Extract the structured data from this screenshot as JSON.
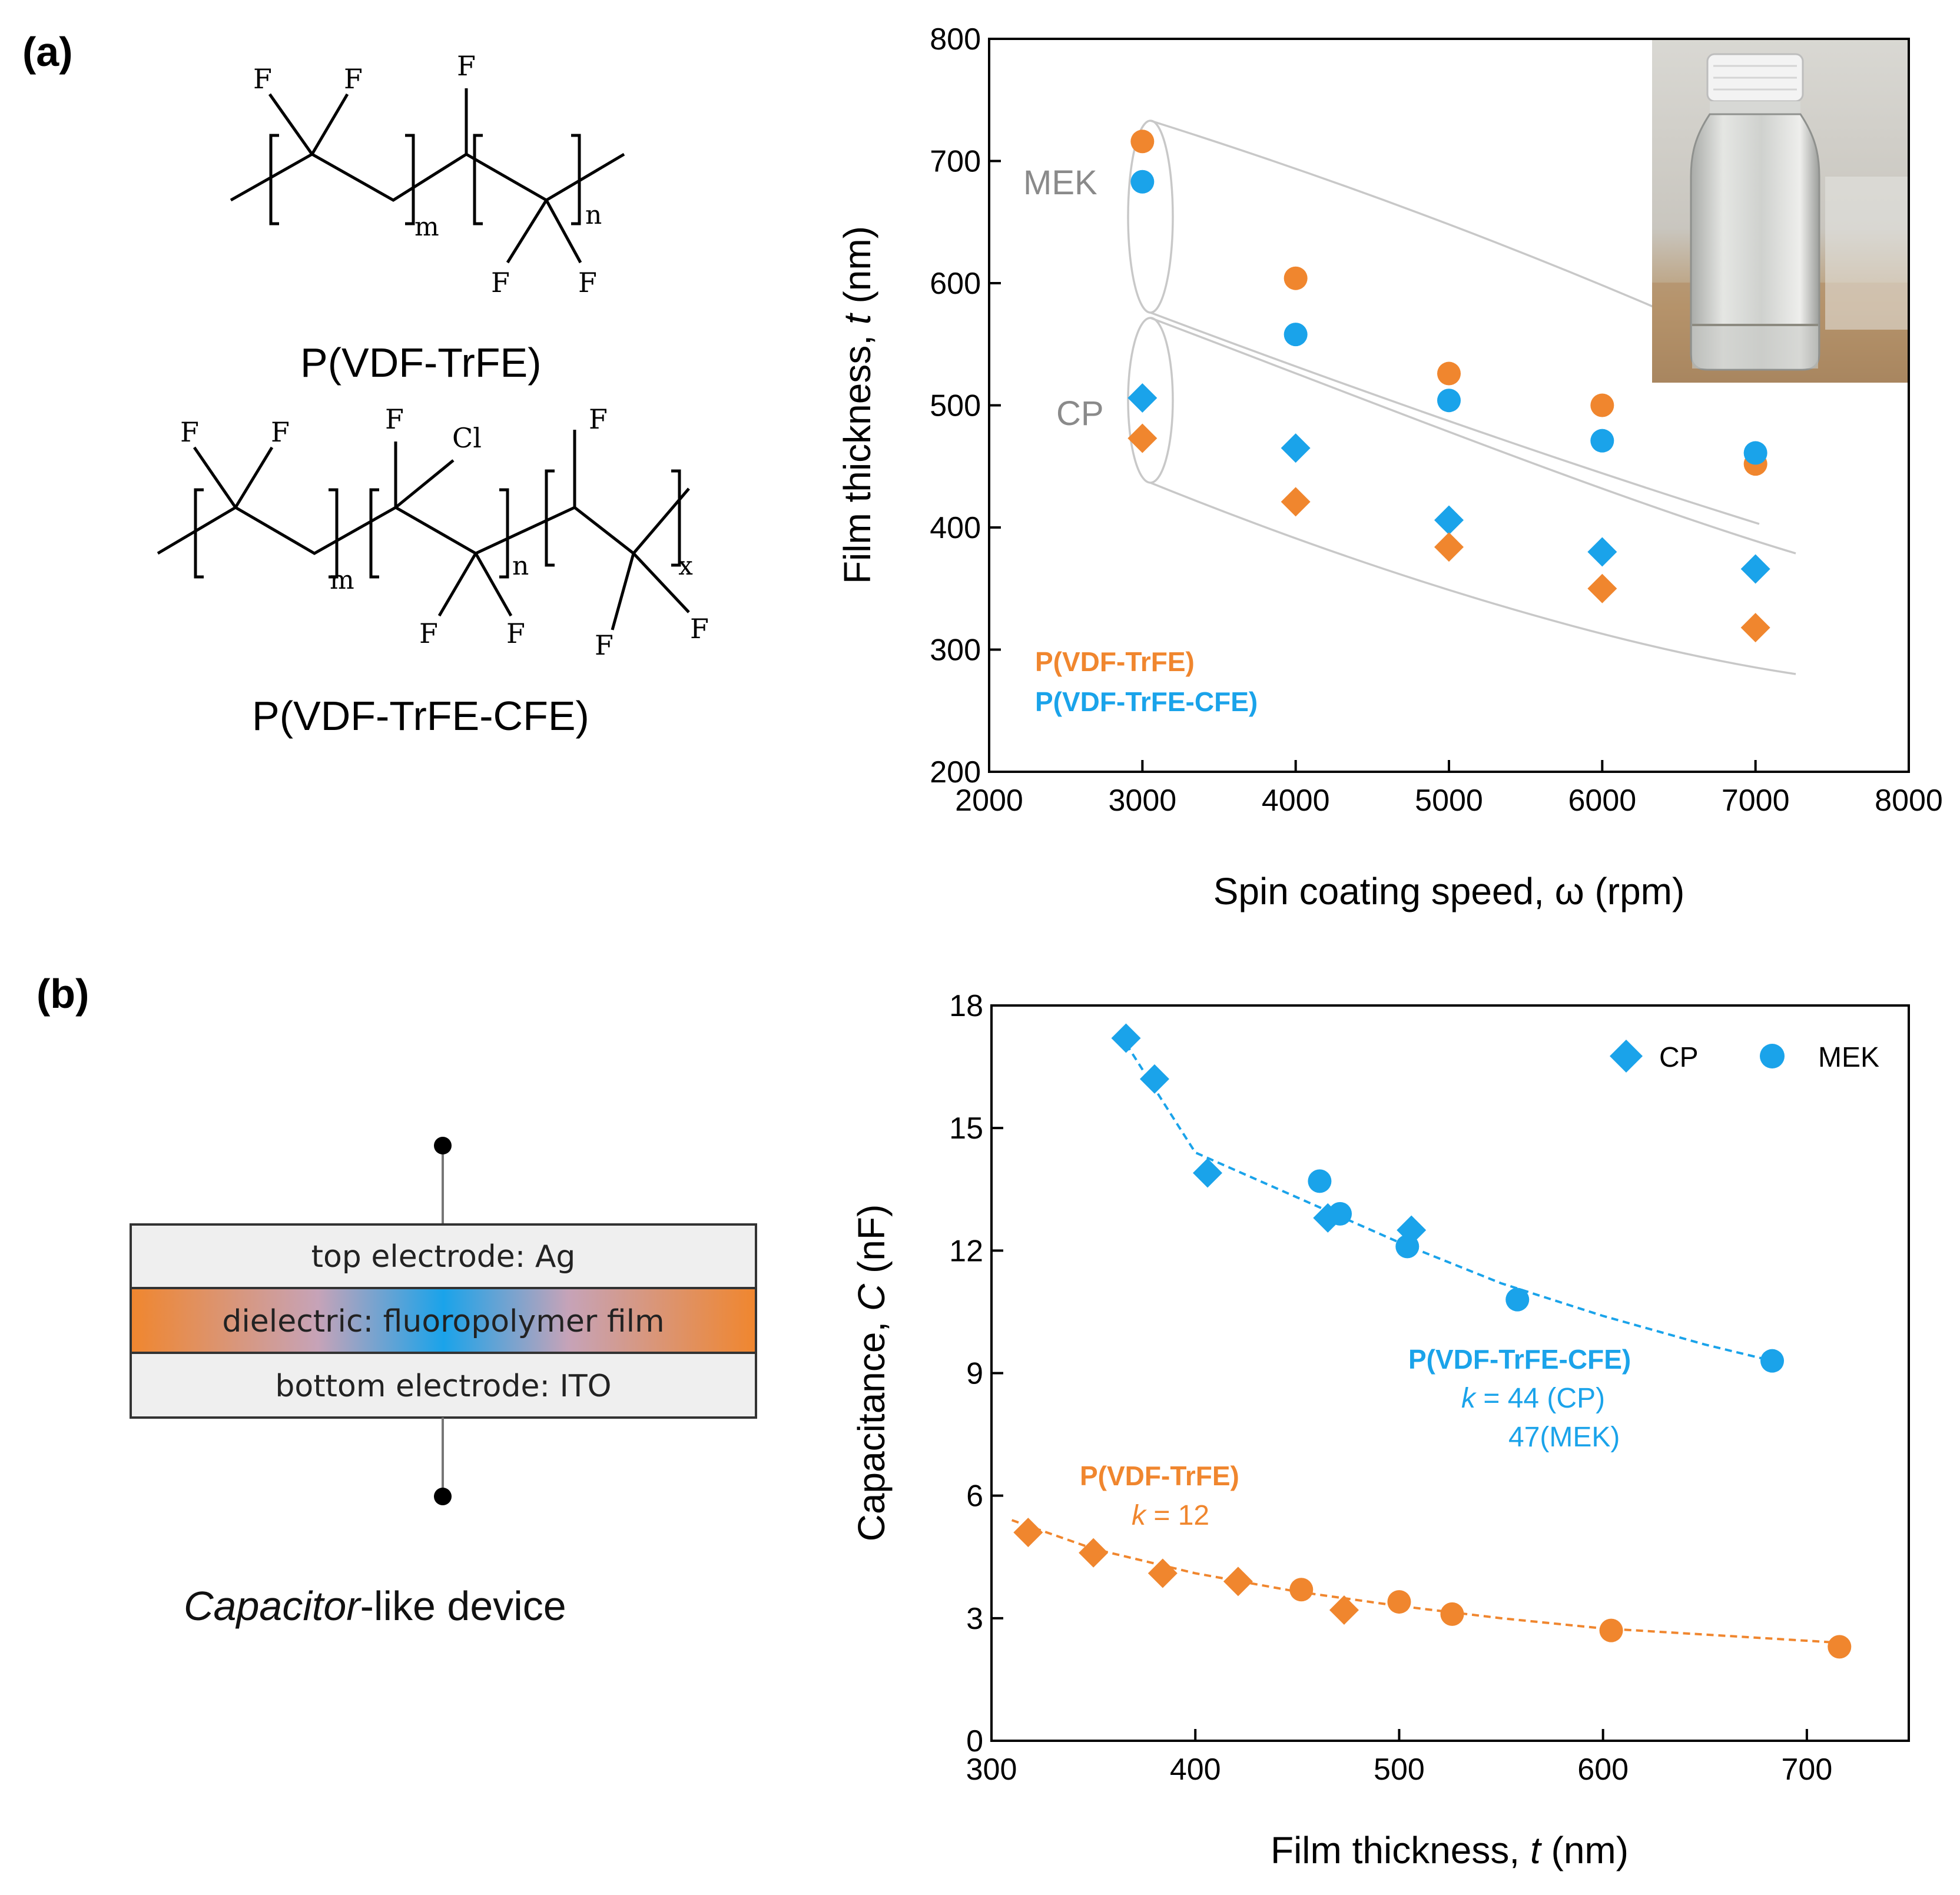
{
  "panel_labels": {
    "a": "(a)",
    "b": "(b)"
  },
  "colors": {
    "orange": "#f0862e",
    "blue": "#1aa3ea",
    "guide": "#c8c8c8"
  },
  "chem": {
    "structure1": {
      "name": "P(VDF-TrFE)",
      "atoms": {
        "f1": "F",
        "f2": "F",
        "f3": "F",
        "f4": "F",
        "f5": "F"
      },
      "subscripts": {
        "m": "m",
        "n": "n"
      }
    },
    "structure2": {
      "name": "P(VDF-TrFE-CFE)",
      "atoms": {
        "f1": "F",
        "f2": "F",
        "f3": "F",
        "cl": "Cl",
        "f4": "F",
        "f5": "F",
        "f6": "F",
        "f7": "F",
        "f8": "F"
      },
      "subscripts": {
        "m": "m",
        "n": "n",
        "x": "x"
      }
    }
  },
  "device": {
    "top": "top electrode: Ag",
    "middle": "dielectric: fluoropolymer film",
    "bottom": "bottom electrode: ITO",
    "caption_italic": "Capacitor",
    "caption_rest": "-like device"
  },
  "photo_inset": "vial photo",
  "chart_data": [
    {
      "type": "scatter",
      "panel": "(a)",
      "xlabel": "Spin coating speed, ω (rpm)",
      "ylabel_prefix": "Film thickness, ",
      "ylabel_var": "t",
      "ylabel_suffix": " (nm)",
      "xlim": [
        2000,
        8000
      ],
      "ylim": [
        200,
        800
      ],
      "xticks": [
        "2000",
        "3000",
        "4000",
        "5000",
        "6000",
        "7000",
        "8000"
      ],
      "yticks": [
        "200",
        "300",
        "400",
        "500",
        "600",
        "700",
        "800"
      ],
      "group_labels": {
        "mek": "MEK",
        "cp": "CP"
      },
      "legend": {
        "p1": "P(VDF-TrFE)",
        "p2": "P(VDF-TrFE-CFE)"
      },
      "series": [
        {
          "name": "P(VDF-TrFE) MEK",
          "marker": "circle",
          "color": "orange",
          "x": [
            3000,
            4000,
            5000,
            6000,
            7000
          ],
          "y": [
            716,
            604,
            526,
            500,
            452
          ]
        },
        {
          "name": "P(VDF-TrFE-CFE) MEK",
          "marker": "circle",
          "color": "blue",
          "x": [
            3000,
            4000,
            5000,
            6000,
            7000
          ],
          "y": [
            683,
            558,
            504,
            471,
            461
          ]
        },
        {
          "name": "P(VDF-TrFE-CFE) CP",
          "marker": "diamond",
          "color": "blue",
          "x": [
            3000,
            4000,
            5000,
            6000,
            7000
          ],
          "y": [
            506,
            465,
            406,
            380,
            366
          ]
        },
        {
          "name": "P(VDF-TrFE) CP",
          "marker": "diamond",
          "color": "orange",
          "x": [
            3000,
            4000,
            5000,
            6000,
            7000
          ],
          "y": [
            473,
            421,
            384,
            350,
            318
          ]
        }
      ]
    },
    {
      "type": "scatter",
      "panel": "(b)",
      "xlabel_prefix": "Film thickness, ",
      "xlabel_var": "t",
      "xlabel_suffix": " (nm)",
      "ylabel_prefix": "Capacitance, ",
      "ylabel_var": "C",
      "ylabel_suffix": " (nF)",
      "xlim": [
        300,
        750
      ],
      "ylim": [
        0,
        18
      ],
      "xticks": [
        "300",
        "400",
        "500",
        "600",
        "700"
      ],
      "yticks": [
        "0",
        "3",
        "6",
        "9",
        "12",
        "15",
        "18"
      ],
      "legend": {
        "cp": "CP",
        "mek": "MEK"
      },
      "annotations": {
        "blue_title": "P(VDF-TrFE-CFE)",
        "blue_k_var": "k",
        "blue_k_rest": " = 44 (CP)",
        "blue_k2": "47(MEK)",
        "orange_title": "P(VDF-TrFE)",
        "orange_k_var": "k",
        "orange_k_rest": " = 12"
      },
      "series": [
        {
          "name": "P(VDF-TrFE-CFE) CP",
          "marker": "diamond",
          "color": "blue",
          "x": [
            366,
            380,
            406,
            465,
            506
          ],
          "y": [
            17.2,
            16.2,
            13.9,
            12.8,
            12.5
          ]
        },
        {
          "name": "P(VDF-TrFE-CFE) MEK",
          "marker": "circle",
          "color": "blue",
          "x": [
            461,
            471,
            504,
            558,
            683
          ],
          "y": [
            13.7,
            12.9,
            12.1,
            10.8,
            9.3
          ]
        },
        {
          "name": "P(VDF-TrFE) CP",
          "marker": "diamond",
          "color": "orange",
          "x": [
            318,
            350,
            384,
            421,
            473
          ],
          "y": [
            5.1,
            4.6,
            4.1,
            3.9,
            3.2
          ]
        },
        {
          "name": "P(VDF-TrFE) MEK",
          "marker": "circle",
          "color": "orange",
          "x": [
            452,
            500,
            526,
            604,
            716
          ],
          "y": [
            3.7,
            3.4,
            3.1,
            2.7,
            2.3
          ]
        }
      ],
      "fits": [
        {
          "name": "P(VDF-TrFE-CFE) fit",
          "color": "blue",
          "x": [
            363,
            400,
            450,
            500,
            550,
            600,
            650,
            683
          ],
          "y": [
            17.3,
            14.4,
            13.3,
            12.2,
            11.2,
            10.4,
            9.7,
            9.3
          ]
        },
        {
          "name": "P(VDF-TrFE) fit",
          "color": "orange",
          "x": [
            310,
            350,
            400,
            450,
            500,
            550,
            600,
            650,
            716
          ],
          "y": [
            5.4,
            4.7,
            4.1,
            3.65,
            3.3,
            3.0,
            2.75,
            2.6,
            2.4
          ]
        }
      ]
    }
  ]
}
